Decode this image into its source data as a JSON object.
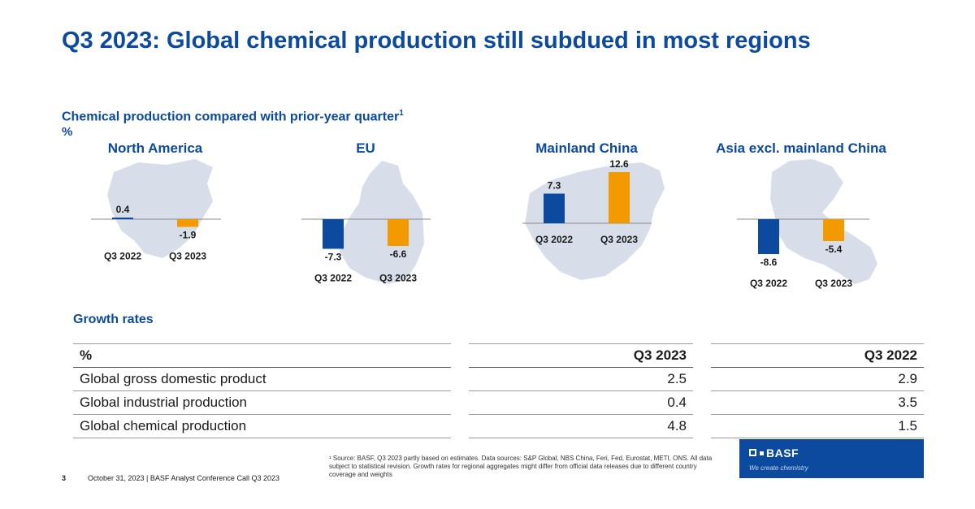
{
  "title": "Q3 2023: Global chemical production still subdued in most regions",
  "chart_section": {
    "subtitle": "Chemical production compared with prior-year quarter",
    "footnote_mark": "1",
    "unit": "%"
  },
  "chart_data": [
    {
      "type": "bar",
      "title": "North America",
      "categories": [
        "Q3 2022",
        "Q3 2023"
      ],
      "values": [
        0.4,
        -1.9
      ],
      "value_labels": [
        "0.4",
        "-1.9"
      ],
      "colors": [
        "#0b4a9e",
        "#f39a00"
      ]
    },
    {
      "type": "bar",
      "title": "EU",
      "categories": [
        "Q3 2022",
        "Q3 2023"
      ],
      "values": [
        -7.3,
        -6.6
      ],
      "value_labels": [
        "-7.3",
        "-6.6"
      ],
      "colors": [
        "#0b4a9e",
        "#f39a00"
      ]
    },
    {
      "type": "bar",
      "title": "Mainland China",
      "categories": [
        "Q3 2022",
        "Q3 2023"
      ],
      "values": [
        7.3,
        12.6
      ],
      "value_labels": [
        "7.3",
        "12.6"
      ],
      "colors": [
        "#0b4a9e",
        "#f39a00"
      ]
    },
    {
      "type": "bar",
      "title": "Asia excl. mainland China",
      "categories": [
        "Q3 2022",
        "Q3 2023"
      ],
      "values": [
        -8.6,
        -5.4
      ],
      "value_labels": [
        "-8.6",
        "-5.4"
      ],
      "colors": [
        "#0b4a9e",
        "#f39a00"
      ]
    }
  ],
  "growth": {
    "title": "Growth rates",
    "header_label": "%",
    "col_q3_2023": "Q3 2023",
    "col_q3_2022": "Q3 2022",
    "rows": [
      {
        "label": "Global gross domestic product",
        "q3_2023": "2.5",
        "q3_2022": "2.9"
      },
      {
        "label": "Global industrial production",
        "q3_2023": "0.4",
        "q3_2022": "3.5"
      },
      {
        "label": "Global chemical production",
        "q3_2023": "4.8",
        "q3_2022": "1.5"
      }
    ]
  },
  "footnote": "¹ Source: BASF, Q3 2023 partly based on estimates. Data sources: S&P Global, NBS China, Feri, Fed, Eurostat, METI, ONS. All data subject to statistical revision. Growth rates for regional aggregates might differ from official data releases due to different country coverage and weights",
  "footer": {
    "page_number": "3",
    "text": "October 31, 2023 | BASF Analyst Conference Call Q3 2023"
  },
  "logo": {
    "name": "BASF",
    "tagline": "We create chemistry"
  }
}
